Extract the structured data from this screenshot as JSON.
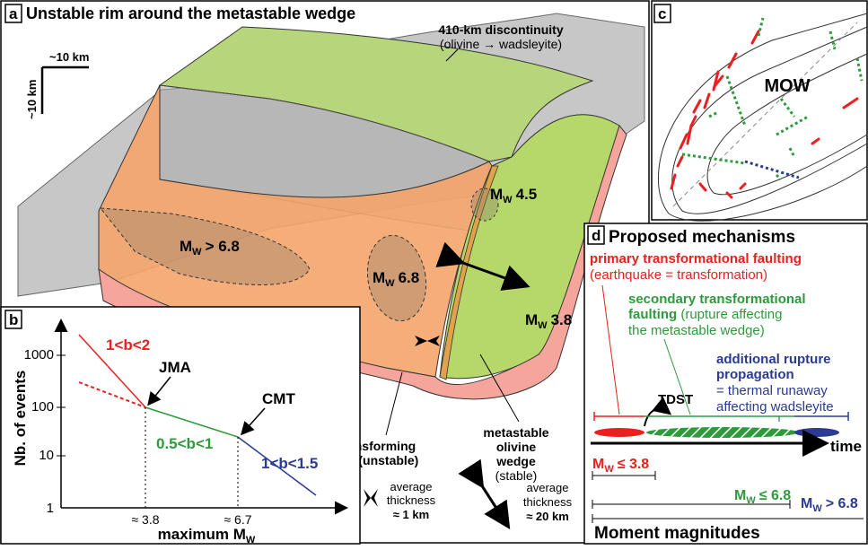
{
  "panel_a": {
    "letter": "a",
    "title": "Unstable rim around the metastable wedge",
    "discontinuity_line1": "410-km discontinuity",
    "discontinuity_line2": "(olivine → wadsleyite)",
    "scale_h": "~10 km",
    "scale_v": "~10 km",
    "mw_large": "> 6.8",
    "mw_mid": "6.8",
    "mw_small": "4.5",
    "mw_edge": "3.8",
    "mw_prefix": "M",
    "mw_sub": "W",
    "rim_label": [
      "transforming",
      "rim (unstable)"
    ],
    "wedge_label": [
      "metastable",
      "olivine",
      "wedge",
      "(stable)"
    ],
    "rim_thickness": [
      "average",
      "thickness",
      "≈ 1 km"
    ],
    "wedge_thickness": [
      "average",
      "thickness",
      "≈ 20 km"
    ]
  },
  "panel_b": {
    "letter": "b",
    "y_axis_label": "Nb. of events",
    "x_axis_label": "maximum M",
    "x_axis_sub": "W",
    "y_ticks": [
      "1",
      "10",
      "100",
      "1000"
    ],
    "x_ticks": [
      "≈ 3.8",
      "≈ 6.7"
    ],
    "seg1_label": "1<b<2",
    "seg2_label": "0.5<b<1",
    "seg3_label": "1<b<1.5",
    "jma": "JMA",
    "cmt": "CMT"
  },
  "panel_c": {
    "letter": "c",
    "label": "MOW"
  },
  "panel_d": {
    "letter": "d",
    "title": "Proposed mechanisms",
    "primary_line1": "primary transformational faulting",
    "primary_line2": "(earthquake = transformation)",
    "secondary_line1": "secondary transformational",
    "secondary_line2a": "faulting",
    "secondary_line2b": " (rupture affecting",
    "secondary_line3": "the metastable wedge)",
    "additional_line1": "additional rupture",
    "additional_line2": "propagation",
    "additional_line3": "= thermal runaway",
    "additional_line4": "affecting wadsleyite",
    "tdst": "TDST",
    "time": "time",
    "mw1": "≤ 3.8",
    "mw2": "≤ 6.8",
    "mw3": "> 6.8",
    "mw_prefix": "M",
    "mw_sub": "W",
    "moment_title": "Moment magnitudes"
  },
  "colors": {
    "red": "#e8201f",
    "green": "#2e9a3c",
    "blue": "#2b3a92",
    "rim_orange": "#f4a56a",
    "wedge_green": "#b6d86a",
    "gray_plane": "#bdbdbd",
    "salmon": "#f6a59c"
  }
}
